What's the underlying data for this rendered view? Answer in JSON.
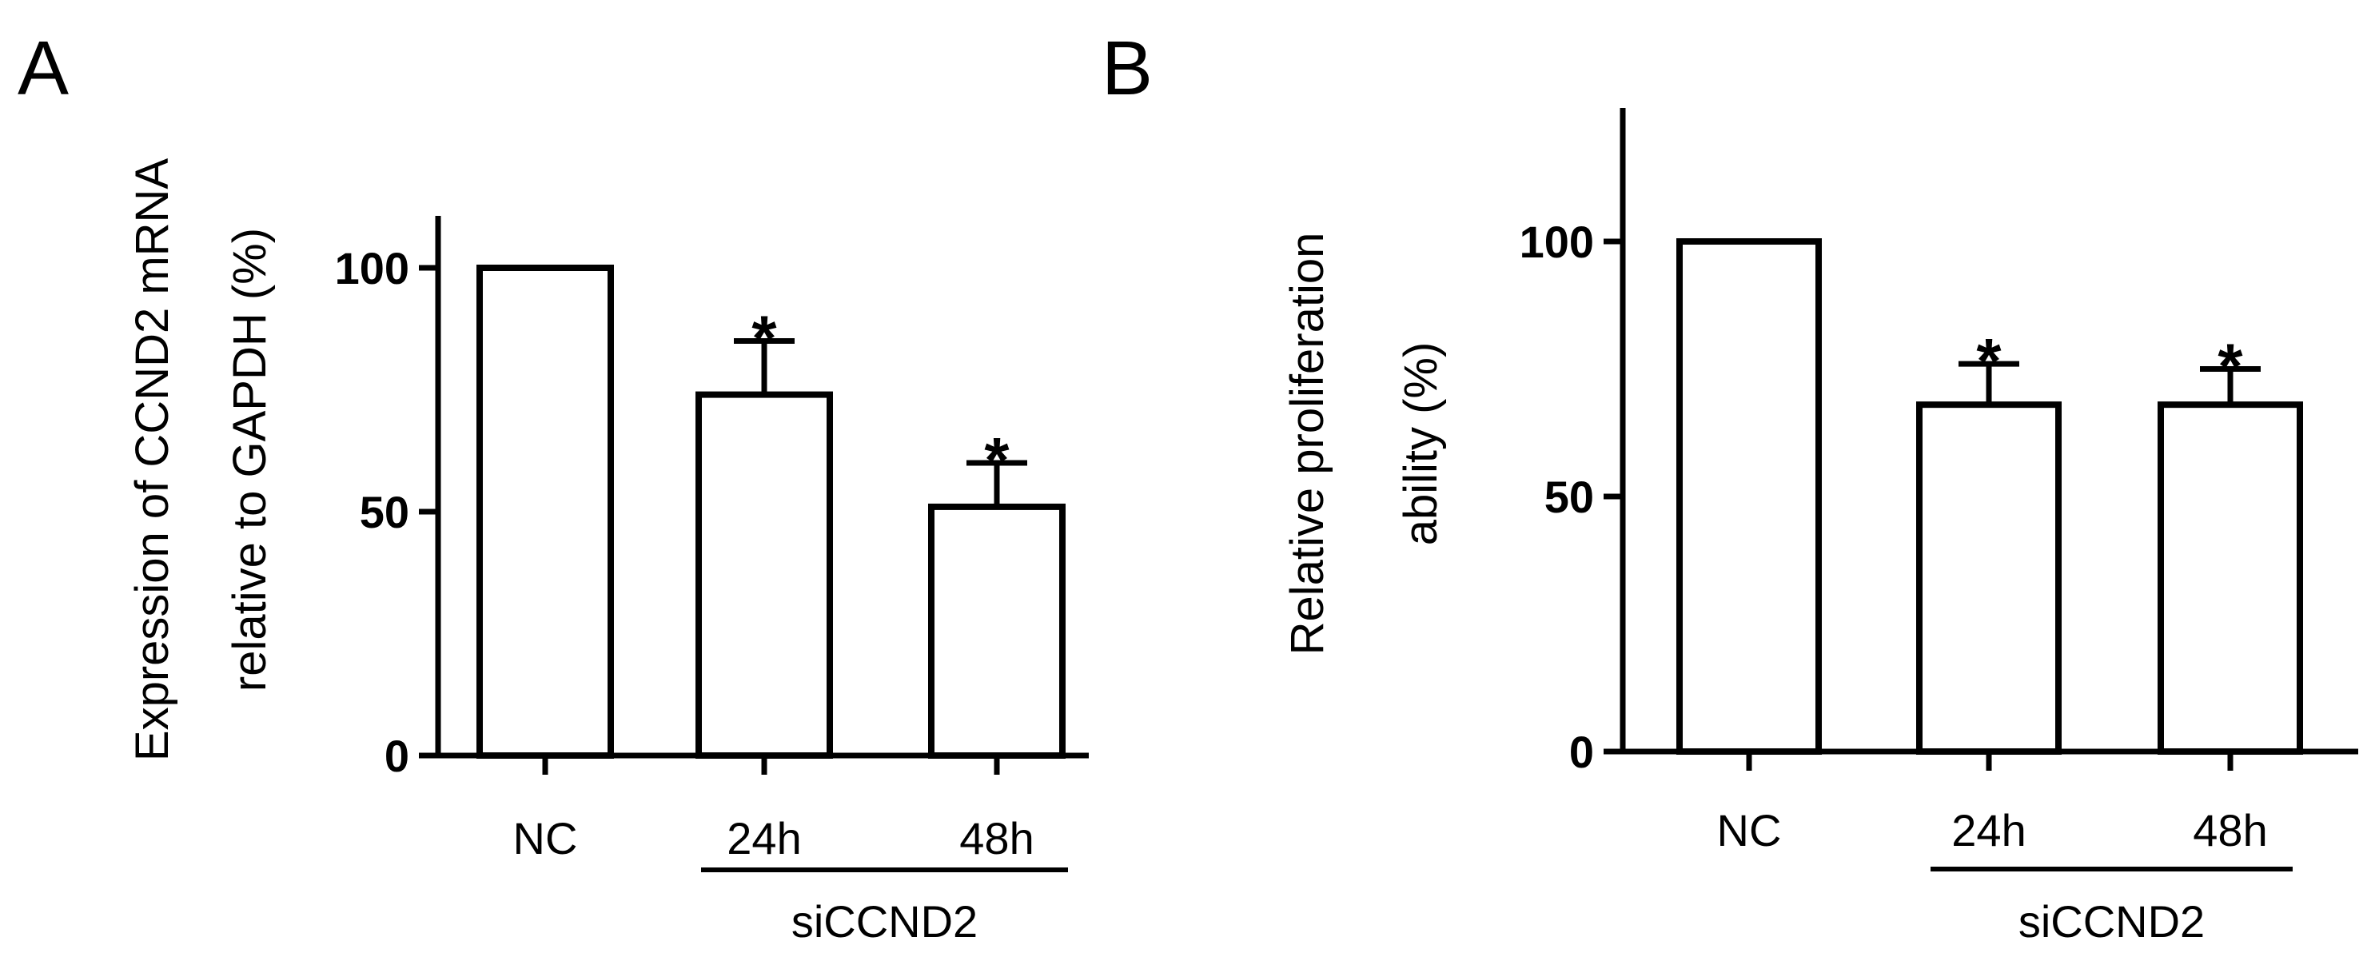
{
  "chart_data": [
    {
      "type": "bar",
      "panel": "A",
      "categories": [
        "NC",
        "24h",
        "48h"
      ],
      "values": [
        100,
        74,
        51
      ],
      "errors": [
        0,
        11,
        9
      ],
      "significance": [
        "",
        "*",
        "*"
      ],
      "ylabel_line1": "Expression of CCND2 mRNA",
      "ylabel_line2": "relative to GAPDH (%)",
      "yticks": [
        "0",
        "50",
        "100"
      ],
      "ylim": [
        0,
        110
      ],
      "group_label": "siCCND2",
      "group_categories": [
        "24h",
        "48h"
      ],
      "grid": false
    },
    {
      "type": "bar",
      "panel": "B",
      "categories": [
        "NC",
        "24h",
        "48h"
      ],
      "values": [
        100,
        68,
        68
      ],
      "errors": [
        0,
        8,
        7
      ],
      "significance": [
        "",
        "*",
        "*"
      ],
      "ylabel_line1": "Relative proliferation",
      "ylabel_line2": "ability (%)",
      "yticks": [
        "0",
        "50",
        "100"
      ],
      "ylim": [
        0,
        127
      ],
      "group_label": "siCCND2",
      "group_categories": [
        "24h",
        "48h"
      ],
      "grid": false
    }
  ]
}
